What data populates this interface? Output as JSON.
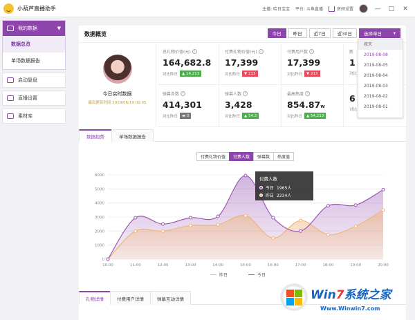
{
  "titlebar": {
    "app_title": "小葫芦直播助手",
    "anchor_label": "主播: 哈日宝宝",
    "platform_label": "平台: 斗鱼直播",
    "room_settings": "房间设置",
    "min_btn": "—",
    "max_btn": "□",
    "close_btn": "✕"
  },
  "sidebar": {
    "group_title": "我的数据",
    "sub_items": [
      "数据总览",
      "单场数据报告"
    ],
    "items": [
      "启动复盘",
      "直播设置",
      "素材库"
    ]
  },
  "overview": {
    "title": "数据概览",
    "range_buttons": [
      "今日",
      "昨日",
      "近7日",
      "近30日"
    ],
    "select_label": "选择单日",
    "profile_title": "今日实时数据",
    "profile_time": "最后更新时间 2019/06/19 02:05"
  },
  "cards": [
    {
      "label": "总礼物价值(元)",
      "value": "164,682.8",
      "unit": "",
      "cmp_label": "对比昨日",
      "badge": "▲ 14,213",
      "badge_color": "#4cae4c"
    },
    {
      "label": "付费礼物价值(元)",
      "value": "17,399",
      "unit": "",
      "cmp_label": "对比昨日",
      "badge": "▼ 213",
      "badge_color": "#e74b5b"
    },
    {
      "label": "付费用户数",
      "value": "17,399",
      "unit": "",
      "cmp_label": "对比昨日",
      "badge": "▼ 213",
      "badge_color": "#e74b5b"
    },
    {
      "label": "新",
      "value": "1",
      "unit": "",
      "cmp_label": "对比",
      "badge": "",
      "badge_color": "#4cae4c"
    },
    {
      "label": "弹幕条数",
      "value": "414,301",
      "unit": "",
      "cmp_label": "对比昨日",
      "badge": "▬ 0",
      "badge_color": "#777777"
    },
    {
      "label": "弹幕人数",
      "value": "3,428",
      "unit": "",
      "cmp_label": "对比昨日",
      "badge": "▲ 54.2",
      "badge_color": "#4cae4c"
    },
    {
      "label": "最高热度",
      "value": "854.87",
      "unit": "w",
      "cmp_label": "对比昨日",
      "badge": "▲ 54,213",
      "badge_color": "#4cae4c"
    },
    {
      "label": "",
      "value": "6",
      "unit": "",
      "cmp_label": "对比",
      "badge": "",
      "badge_color": "#4cae4c"
    }
  ],
  "dropdown": {
    "items": [
      "按天",
      "2019-08-08",
      "2019-08-05",
      "2019-08-04",
      "2019-08-03",
      "2019-08-02",
      "2019-08-01"
    ]
  },
  "trend_tabs": [
    "数据趋势",
    "单场数据报告"
  ],
  "metric_buttons": [
    "付费礼物价值",
    "付费人数",
    "弹幕数",
    "热度值"
  ],
  "tooltip": {
    "title": "付费人数",
    "rows": [
      {
        "label": "今日",
        "value": "1965人"
      },
      {
        "label": "昨日",
        "value": "2234人"
      }
    ]
  },
  "legend": {
    "yesterday": "昨日",
    "today": "今日"
  },
  "bottom_tabs": [
    "礼物详情",
    "付费用户详情",
    "弹幕互动详情"
  ],
  "watermark": {
    "brand_a": "Win",
    "brand_b": "7",
    "brand_c": "系统之家",
    "url": "Www.Winwin7.com"
  },
  "colors": {
    "accent": "#8e44ad",
    "today_line": "#9b59b6",
    "yesterday_line": "#f0b57a",
    "up": "#4cae4c",
    "down": "#e74b5b"
  },
  "chart_data": {
    "type": "area",
    "x": [
      "10:00",
      "11:00",
      "12:00",
      "13:00",
      "14:00",
      "15:00",
      "16:00",
      "17:00",
      "18:00",
      "19:00",
      "20:00"
    ],
    "ylim": [
      0,
      6000
    ],
    "yticks": [
      0,
      1000,
      2000,
      3000,
      4000,
      5000,
      6000
    ],
    "grid": true,
    "legend_position": "bottom",
    "series": [
      {
        "name": "昨日",
        "values": [
          0,
          2000,
          2000,
          2400,
          2450,
          3100,
          1500,
          2750,
          1750,
          2350,
          3500
        ],
        "color": "#f0b57a"
      },
      {
        "name": "今日",
        "values": [
          0,
          2950,
          2500,
          2950,
          3050,
          5950,
          2950,
          2000,
          3800,
          3850,
          4950
        ],
        "color": "#9b59b6"
      }
    ]
  }
}
